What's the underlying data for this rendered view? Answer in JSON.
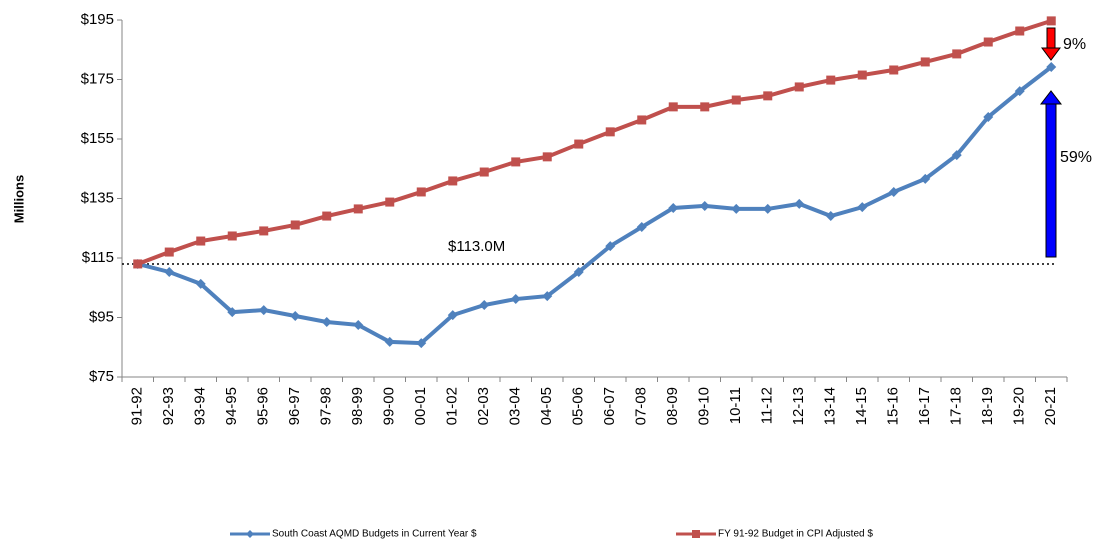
{
  "chart_data": {
    "type": "line",
    "y_label": "Millions",
    "categories": [
      "91-92",
      "92-93",
      "93-94",
      "94-95",
      "95-96",
      "96-97",
      "97-98",
      "98-99",
      "99-00",
      "00-01",
      "01-02",
      "02-03",
      "03-04",
      "04-05",
      "05-06",
      "06-07",
      "07-08",
      "08-09",
      "09-10",
      "10-11",
      "11-12",
      "12-13",
      "13-14",
      "14-15",
      "15-16",
      "16-17",
      "17-18",
      "18-19",
      "19-20",
      "20-21"
    ],
    "series": [
      {
        "name": "South Coast AQMD Budgets in Current Year $",
        "color": "#4f81bd",
        "marker": "diamond",
        "values": [
          113,
          110.3,
          106.3,
          96.8,
          97.5,
          95.5,
          93.5,
          92.5,
          86.8,
          86.4,
          95.8,
          99.2,
          101.2,
          102.2,
          110.3,
          119.0,
          125.4,
          131.8,
          132.5,
          131.5,
          131.5,
          133.2,
          129.1,
          132.1,
          137.2,
          141.6,
          149.6,
          162.4,
          171.1,
          179.2
        ]
      },
      {
        "name": "FY 91-92 Budget in CPI Adjusted $",
        "color": "#c0504d",
        "marker": "square",
        "values": [
          113,
          117.0,
          120.7,
          122.4,
          124.1,
          126.1,
          129.1,
          131.5,
          133.8,
          137.2,
          140.9,
          143.9,
          147.3,
          149.0,
          153.3,
          157.4,
          161.4,
          165.8,
          165.8,
          168.1,
          169.5,
          172.5,
          174.8,
          176.5,
          178.2,
          180.9,
          183.6,
          187.6,
          191.3,
          194.7
        ]
      }
    ],
    "ylim": [
      75,
      195
    ],
    "yticks": [
      {
        "value": 75,
        "label": "$75"
      },
      {
        "value": 95,
        "label": "$95"
      },
      {
        "value": 115,
        "label": "$115"
      },
      {
        "value": 135,
        "label": "$135"
      },
      {
        "value": 155,
        "label": "$155"
      },
      {
        "value": 175,
        "label": "$175"
      },
      {
        "value": 195,
        "label": "$195"
      }
    ],
    "reference_line": {
      "value": 113,
      "label": "$113.0M"
    },
    "annotations": [
      "9%",
      "59%"
    ],
    "legend": "bottom"
  }
}
